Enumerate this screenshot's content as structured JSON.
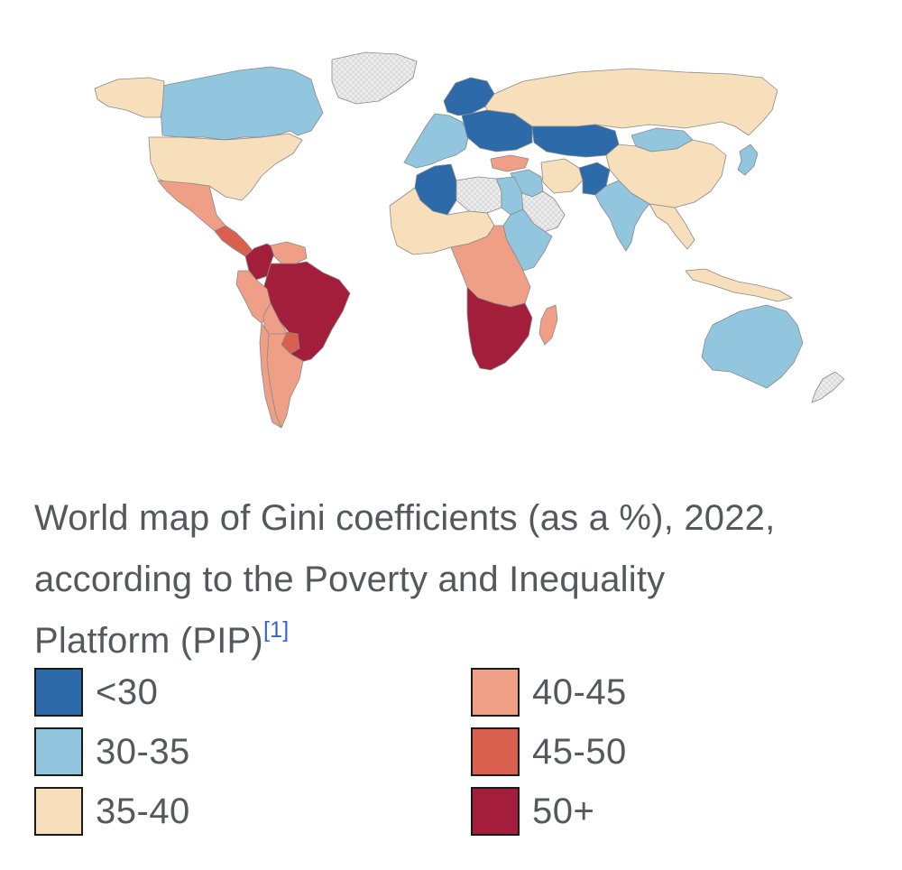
{
  "map": {
    "colors": {
      "lt30": "#2c6aa9",
      "r30_35": "#92c5de",
      "r35_40": "#f6dfba",
      "r40_45": "#ef9f86",
      "r45_50": "#d9604f",
      "r50p": "#a31e3a",
      "nodata": "#e8e8e8",
      "border": "#8a8a8a"
    },
    "regions": [
      {
        "name": "canada",
        "legend": "30-35"
      },
      {
        "name": "alaska",
        "legend": "35-40"
      },
      {
        "name": "united-states",
        "legend": "35-40"
      },
      {
        "name": "greenland",
        "legend": "no data"
      },
      {
        "name": "mexico",
        "legend": "40-45"
      },
      {
        "name": "central-america",
        "legend": "45-50"
      },
      {
        "name": "brazil",
        "legend": "50+"
      },
      {
        "name": "colombia",
        "legend": "50+"
      },
      {
        "name": "venezuela",
        "legend": "40-45"
      },
      {
        "name": "peru",
        "legend": "40-45"
      },
      {
        "name": "bolivia",
        "legend": "40-45"
      },
      {
        "name": "argentina",
        "legend": "40-45"
      },
      {
        "name": "chile",
        "legend": "40-45"
      },
      {
        "name": "paraguay",
        "legend": "45-50"
      },
      {
        "name": "western-europe",
        "legend": "30-35"
      },
      {
        "name": "scandinavia",
        "legend": "<30"
      },
      {
        "name": "eastern-europe",
        "legend": "<30"
      },
      {
        "name": "russia",
        "legend": "35-40"
      },
      {
        "name": "kazakhstan",
        "legend": "<30"
      },
      {
        "name": "mongolia",
        "legend": "30-35"
      },
      {
        "name": "china",
        "legend": "35-40"
      },
      {
        "name": "turkey",
        "legend": "40-45"
      },
      {
        "name": "iran",
        "legend": "35-40"
      },
      {
        "name": "middle-east",
        "legend": "30-35"
      },
      {
        "name": "arabian-peninsula",
        "legend": "no data"
      },
      {
        "name": "pakistan",
        "legend": "<30"
      },
      {
        "name": "india",
        "legend": "30-35"
      },
      {
        "name": "southeast-asia",
        "legend": "35-40"
      },
      {
        "name": "algeria",
        "legend": "<30"
      },
      {
        "name": "north-africa",
        "legend": "no data"
      },
      {
        "name": "egypt",
        "legend": "30-35"
      },
      {
        "name": "west-africa",
        "legend": "35-40"
      },
      {
        "name": "central-africa",
        "legend": "40-45"
      },
      {
        "name": "east-africa",
        "legend": "30-35"
      },
      {
        "name": "southern-africa",
        "legend": "50+"
      },
      {
        "name": "madagascar",
        "legend": "40-45"
      },
      {
        "name": "australia",
        "legend": "30-35"
      },
      {
        "name": "new-zealand",
        "legend": "no data"
      },
      {
        "name": "indonesia",
        "legend": "35-40"
      },
      {
        "name": "japan",
        "legend": "30-35"
      }
    ]
  },
  "caption": {
    "line1": "World map of Gini coefficients (as a %), 2022,",
    "line2": "according to the Poverty and Inequality",
    "line3": "Platform (PIP)",
    "ref": "[1]"
  },
  "legend": {
    "items": [
      {
        "label": "<30",
        "color": "#2c6aa9"
      },
      {
        "label": "30-35",
        "color": "#92c5de"
      },
      {
        "label": "35-40",
        "color": "#f6dfba"
      },
      {
        "label": "40-45",
        "color": "#ef9f86"
      },
      {
        "label": "45-50",
        "color": "#d9604f"
      },
      {
        "label": "50+",
        "color": "#a31e3a"
      }
    ]
  }
}
